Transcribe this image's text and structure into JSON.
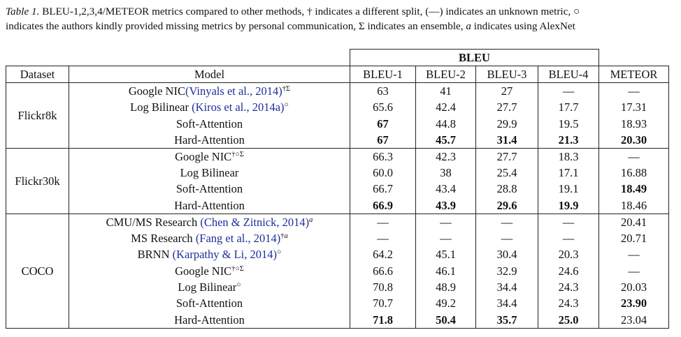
{
  "caption": {
    "label": "Table 1.",
    "line1": " BLEU-1,2,3,4/METEOR metrics compared to other methods, † indicates a different split, (—) indicates an unknown metric, ○",
    "line2_a": "indicates the authors kindly provided missing metrics by personal communication, Σ indicates an ensemble, ",
    "line2_var": "a",
    "line2_b": " indicates using AlexNet"
  },
  "header": {
    "group": "BLEU",
    "dataset": "Dataset",
    "model": "Model",
    "columns": [
      "BLEU-1",
      "BLEU-2",
      "BLEU-3",
      "BLEU-4",
      "METEOR"
    ]
  },
  "groups": [
    {
      "dataset": "Flickr8k",
      "rows": [
        {
          "model": "Google NIC",
          "cite": "(Vinyals et al., 2014)",
          "sup": "†Σ",
          "values": [
            "63",
            "41",
            "27",
            "—",
            "—"
          ],
          "bold": []
        },
        {
          "model": "Log Bilinear ",
          "cite": "(Kiros et al., 2014a)",
          "sup": "○",
          "values": [
            "65.6",
            "42.4",
            "27.7",
            "17.7",
            "17.31"
          ],
          "bold": []
        },
        {
          "model": "Soft-Attention",
          "cite": "",
          "sup": "",
          "values": [
            "67",
            "44.8",
            "29.9",
            "19.5",
            "18.93"
          ],
          "bold": [
            0
          ]
        },
        {
          "model": "Hard-Attention",
          "cite": "",
          "sup": "",
          "values": [
            "67",
            "45.7",
            "31.4",
            "21.3",
            "20.30"
          ],
          "bold": [
            0,
            1,
            2,
            3,
            4
          ]
        }
      ]
    },
    {
      "dataset": "Flickr30k",
      "rows": [
        {
          "model": "Google NIC",
          "cite": "",
          "sup": "†○Σ",
          "values": [
            "66.3",
            "42.3",
            "27.7",
            "18.3",
            "—"
          ],
          "bold": []
        },
        {
          "model": "Log Bilinear",
          "cite": "",
          "sup": "",
          "values": [
            "60.0",
            "38",
            "25.4",
            "17.1",
            "16.88"
          ],
          "bold": []
        },
        {
          "model": "Soft-Attention",
          "cite": "",
          "sup": "",
          "values": [
            "66.7",
            "43.4",
            "28.8",
            "19.1",
            "18.49"
          ],
          "bold": [
            4
          ]
        },
        {
          "model": "Hard-Attention",
          "cite": "",
          "sup": "",
          "values": [
            "66.9",
            "43.9",
            "29.6",
            "19.9",
            "18.46"
          ],
          "bold": [
            0,
            1,
            2,
            3
          ]
        }
      ]
    },
    {
      "dataset": "COCO",
      "rows": [
        {
          "model": "CMU/MS Research ",
          "cite": "(Chen & Zitnick, 2014)",
          "sup": "a",
          "values": [
            "—",
            "—",
            "—",
            "—",
            "20.41"
          ],
          "bold": []
        },
        {
          "model": "MS Research ",
          "cite": "(Fang et al., 2014)",
          "sup": "†a",
          "values": [
            "—",
            "—",
            "—",
            "—",
            "20.71"
          ],
          "bold": []
        },
        {
          "model": "BRNN ",
          "cite": "(Karpathy & Li, 2014)",
          "sup": "○",
          "values": [
            "64.2",
            "45.1",
            "30.4",
            "20.3",
            "—"
          ],
          "bold": []
        },
        {
          "model": "Google NIC",
          "cite": "",
          "sup": "†○Σ",
          "values": [
            "66.6",
            "46.1",
            "32.9",
            "24.6",
            "—"
          ],
          "bold": []
        },
        {
          "model": "Log Bilinear",
          "cite": "",
          "sup": "○",
          "values": [
            "70.8",
            "48.9",
            "34.4",
            "24.3",
            "20.03"
          ],
          "bold": []
        },
        {
          "model": "Soft-Attention",
          "cite": "",
          "sup": "",
          "values": [
            "70.7",
            "49.2",
            "34.4",
            "24.3",
            "23.90"
          ],
          "bold": [
            4
          ]
        },
        {
          "model": "Hard-Attention",
          "cite": "",
          "sup": "",
          "values": [
            "71.8",
            "50.4",
            "35.7",
            "25.0",
            "23.04"
          ],
          "bold": [
            0,
            1,
            2,
            3
          ]
        }
      ]
    }
  ]
}
